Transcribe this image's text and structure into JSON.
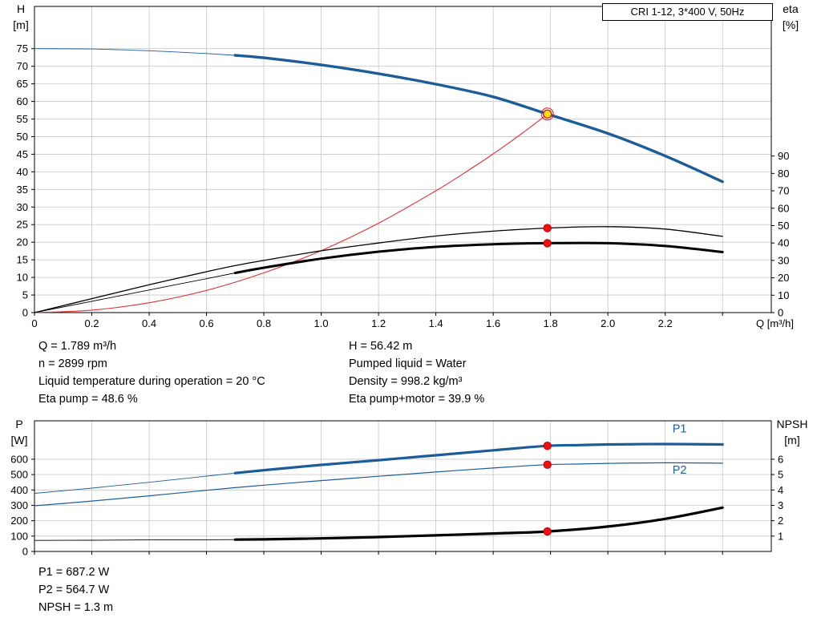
{
  "header": {
    "title": "CRI 1-12, 3*400 V, 50Hz"
  },
  "colors": {
    "curve_blue": "#1c5d99",
    "curve_red": "#e03232",
    "dot_red": "#ee1111",
    "duty_fill": "#ffe014",
    "duty_stroke": "#e01010",
    "grid": "#c6c6c6",
    "axis": "#000000"
  },
  "chart_data": [
    {
      "type": "line",
      "name": "qh-eta-chart",
      "x_axis": {
        "label": "Q [m³/h]",
        "min": 0,
        "max": 2.57,
        "ticks": [
          [
            0,
            "0"
          ],
          [
            0.2,
            "0.2"
          ],
          [
            0.4,
            "0.4"
          ],
          [
            0.6,
            "0.6"
          ],
          [
            0.8,
            "0.8"
          ],
          [
            1,
            "1.0"
          ],
          [
            1.2,
            "1.2"
          ],
          [
            1.4,
            "1.4"
          ],
          [
            1.6,
            "1.6"
          ],
          [
            1.8,
            "1.8"
          ],
          [
            2,
            "2.0"
          ],
          [
            2.2,
            "2.2"
          ],
          [
            2.4,
            ""
          ]
        ]
      },
      "left_axis": {
        "title": [
          "H",
          "[m]"
        ],
        "min": 0,
        "max": 87,
        "ticks": [
          [
            0,
            "0"
          ],
          [
            5,
            "5"
          ],
          [
            10,
            "10"
          ],
          [
            15,
            "15"
          ],
          [
            20,
            "20"
          ],
          [
            25,
            "25"
          ],
          [
            30,
            "30"
          ],
          [
            35,
            "35"
          ],
          [
            40,
            "40"
          ],
          [
            45,
            "45"
          ],
          [
            50,
            "50"
          ],
          [
            55,
            "55"
          ],
          [
            60,
            "60"
          ],
          [
            65,
            "65"
          ],
          [
            70,
            "70"
          ],
          [
            75,
            "75"
          ]
        ]
      },
      "right_axis": {
        "title": [
          "eta",
          "[%]"
        ],
        "min": 0,
        "max": 176,
        "ticks": [
          [
            0,
            "0"
          ],
          [
            10,
            "10"
          ],
          [
            20,
            "20"
          ],
          [
            30,
            "30"
          ],
          [
            40,
            "40"
          ],
          [
            50,
            "50"
          ],
          [
            60,
            "60"
          ],
          [
            70,
            "70"
          ],
          [
            80,
            "80"
          ],
          [
            90,
            "90"
          ]
        ]
      },
      "series": [
        {
          "name": "system-curve",
          "axis": "left",
          "color": "#e03232",
          "width": 1.1,
          "points": [
            [
              0,
              0
            ],
            [
              0.2,
              0.7
            ],
            [
              0.4,
              2.8
            ],
            [
              0.6,
              6.3
            ],
            [
              0.8,
              11.3
            ],
            [
              1,
              17.6
            ],
            [
              1.2,
              25.4
            ],
            [
              1.4,
              34.6
            ],
            [
              1.5,
              39.7
            ],
            [
              1.6,
              45.1
            ],
            [
              1.7,
              50.9
            ],
            [
              1.789,
              56.42
            ]
          ]
        },
        {
          "name": "head-curve",
          "axis": "left",
          "color": "#1c5d99",
          "width": 3.4,
          "thin_width": 0.9,
          "thick_from": 0.7,
          "points": [
            [
              0,
              75
            ],
            [
              0.2,
              74.9
            ],
            [
              0.4,
              74.4
            ],
            [
              0.6,
              73.6
            ],
            [
              0.7,
              73.1
            ],
            [
              0.8,
              72.4
            ],
            [
              1,
              70.4
            ],
            [
              1.2,
              67.9
            ],
            [
              1.4,
              64.9
            ],
            [
              1.6,
              61.3
            ],
            [
              1.789,
              56.42
            ],
            [
              2,
              50.9
            ],
            [
              2.2,
              44.5
            ],
            [
              2.4,
              37.2
            ]
          ]
        },
        {
          "name": "eta-pump-curve",
          "axis": "right",
          "color": "#000000",
          "width": 1.3,
          "points": [
            [
              0,
              0
            ],
            [
              0.2,
              8
            ],
            [
              0.4,
              16
            ],
            [
              0.6,
              23.5
            ],
            [
              0.7,
              27
            ],
            [
              0.8,
              30
            ],
            [
              1,
              35.5
            ],
            [
              1.2,
              40
            ],
            [
              1.4,
              44
            ],
            [
              1.6,
              46.8
            ],
            [
              1.789,
              48.6
            ],
            [
              2,
              49.4
            ],
            [
              2.2,
              48
            ],
            [
              2.4,
              43.8
            ]
          ]
        },
        {
          "name": "eta-pump-motor-curve",
          "axis": "right",
          "color": "#000000",
          "width": 3,
          "thin_width": 0.9,
          "thick_from": 0.7,
          "points": [
            [
              0,
              0
            ],
            [
              0.2,
              6.5
            ],
            [
              0.4,
              13
            ],
            [
              0.6,
              19.5
            ],
            [
              0.7,
              22.8
            ],
            [
              0.8,
              25.8
            ],
            [
              1,
              31
            ],
            [
              1.2,
              35
            ],
            [
              1.4,
              37.8
            ],
            [
              1.6,
              39.3
            ],
            [
              1.789,
              39.9
            ],
            [
              2,
              39.9
            ],
            [
              2.2,
              38.3
            ],
            [
              2.4,
              34.8
            ]
          ]
        }
      ],
      "markers": [
        {
          "name": "duty-point",
          "q": 1.789,
          "v": 56.42,
          "axis": "left",
          "style": "duty"
        },
        {
          "name": "eta-pump-point",
          "q": 1.789,
          "v": 48.6,
          "axis": "right",
          "style": "dot"
        },
        {
          "name": "eta-pump-motor-point",
          "q": 1.789,
          "v": 39.9,
          "axis": "right",
          "style": "dot"
        }
      ],
      "curve_labels": []
    },
    {
      "type": "line",
      "name": "power-npsh-chart",
      "x_axis": {
        "label": "",
        "min": 0,
        "max": 2.57,
        "ticks": [
          [
            0,
            ""
          ],
          [
            0.2,
            ""
          ],
          [
            0.4,
            ""
          ],
          [
            0.6,
            ""
          ],
          [
            0.8,
            ""
          ],
          [
            1,
            ""
          ],
          [
            1.2,
            ""
          ],
          [
            1.4,
            ""
          ],
          [
            1.6,
            ""
          ],
          [
            1.8,
            ""
          ],
          [
            2,
            ""
          ],
          [
            2.2,
            ""
          ],
          [
            2.4,
            ""
          ]
        ]
      },
      "left_axis": {
        "title": [
          "P",
          "[W]"
        ],
        "min": 0,
        "max": 850,
        "ticks": [
          [
            0,
            "0"
          ],
          [
            100,
            "100"
          ],
          [
            200,
            "200"
          ],
          [
            300,
            "300"
          ],
          [
            400,
            "400"
          ],
          [
            500,
            "500"
          ],
          [
            600,
            "600"
          ]
        ]
      },
      "right_axis": {
        "title": [
          "NPSH",
          "[m]"
        ],
        "min": 0,
        "max": 8.5,
        "ticks": [
          [
            1,
            "1"
          ],
          [
            2,
            "2"
          ],
          [
            3,
            "3"
          ],
          [
            4,
            "4"
          ],
          [
            5,
            "5"
          ],
          [
            6,
            "6"
          ]
        ]
      },
      "series": [
        {
          "name": "p1-curve",
          "axis": "left",
          "color": "#1c5d99",
          "width": 3.2,
          "thin_width": 0.9,
          "thick_from": 0.7,
          "points": [
            [
              0,
              378
            ],
            [
              0.2,
              412
            ],
            [
              0.4,
              450
            ],
            [
              0.6,
              490
            ],
            [
              0.7,
              510
            ],
            [
              0.8,
              529
            ],
            [
              1,
              563
            ],
            [
              1.2,
              594
            ],
            [
              1.4,
              626
            ],
            [
              1.6,
              658
            ],
            [
              1.789,
              687.2
            ],
            [
              1.9,
              692
            ],
            [
              2,
              696
            ],
            [
              2.2,
              699
            ],
            [
              2.4,
              696
            ]
          ]
        },
        {
          "name": "p2-curve",
          "axis": "left",
          "color": "#1c5d99",
          "width": 1.2,
          "points": [
            [
              0,
              297
            ],
            [
              0.2,
              328
            ],
            [
              0.4,
              362
            ],
            [
              0.6,
              398
            ],
            [
              0.7,
              415
            ],
            [
              0.8,
              431
            ],
            [
              1,
              461
            ],
            [
              1.2,
              489
            ],
            [
              1.4,
              517
            ],
            [
              1.6,
              543
            ],
            [
              1.789,
              564.7
            ],
            [
              1.9,
              569
            ],
            [
              2,
              573
            ],
            [
              2.2,
              577
            ],
            [
              2.4,
              574
            ]
          ]
        },
        {
          "name": "npsh-curve",
          "axis": "right",
          "color": "#000000",
          "width": 3.2,
          "thin_width": 0.9,
          "thick_from": 0.7,
          "points": [
            [
              0,
              0.72
            ],
            [
              0.2,
              0.73
            ],
            [
              0.4,
              0.75
            ],
            [
              0.6,
              0.76
            ],
            [
              0.7,
              0.77
            ],
            [
              0.8,
              0.79
            ],
            [
              1,
              0.85
            ],
            [
              1.2,
              0.94
            ],
            [
              1.4,
              1.05
            ],
            [
              1.6,
              1.17
            ],
            [
              1.789,
              1.3
            ],
            [
              2,
              1.62
            ],
            [
              2.2,
              2.12
            ],
            [
              2.4,
              2.85
            ]
          ]
        }
      ],
      "markers": [
        {
          "name": "p1-point",
          "q": 1.789,
          "v": 687.2,
          "axis": "left",
          "style": "dot"
        },
        {
          "name": "p2-point",
          "q": 1.789,
          "v": 564.7,
          "axis": "left",
          "style": "dot"
        },
        {
          "name": "npsh-point",
          "q": 1.789,
          "v": 1.3,
          "axis": "right",
          "style": "dot"
        }
      ],
      "curve_labels": [
        {
          "text": "P1",
          "q": 2.25,
          "v": 775,
          "axis": "left",
          "color": "#1c5d99"
        },
        {
          "text": "P2",
          "q": 2.25,
          "v": 505,
          "axis": "left",
          "color": "#1c5d99"
        }
      ]
    }
  ],
  "info_top": {
    "left": [
      "Q = 1.789 m³/h",
      "n = 2899 rpm",
      "Liquid temperature during operation = 20 °C",
      "Eta pump = 48.6 %"
    ],
    "right": [
      "H = 56.42 m",
      "Pumped liquid = Water",
      "Density = 998.2 kg/m³",
      "Eta pump+motor = 39.9 %"
    ]
  },
  "info_bottom": [
    "P1 = 687.2 W",
    "P2 = 564.7 W",
    "NPSH = 1.3 m"
  ]
}
